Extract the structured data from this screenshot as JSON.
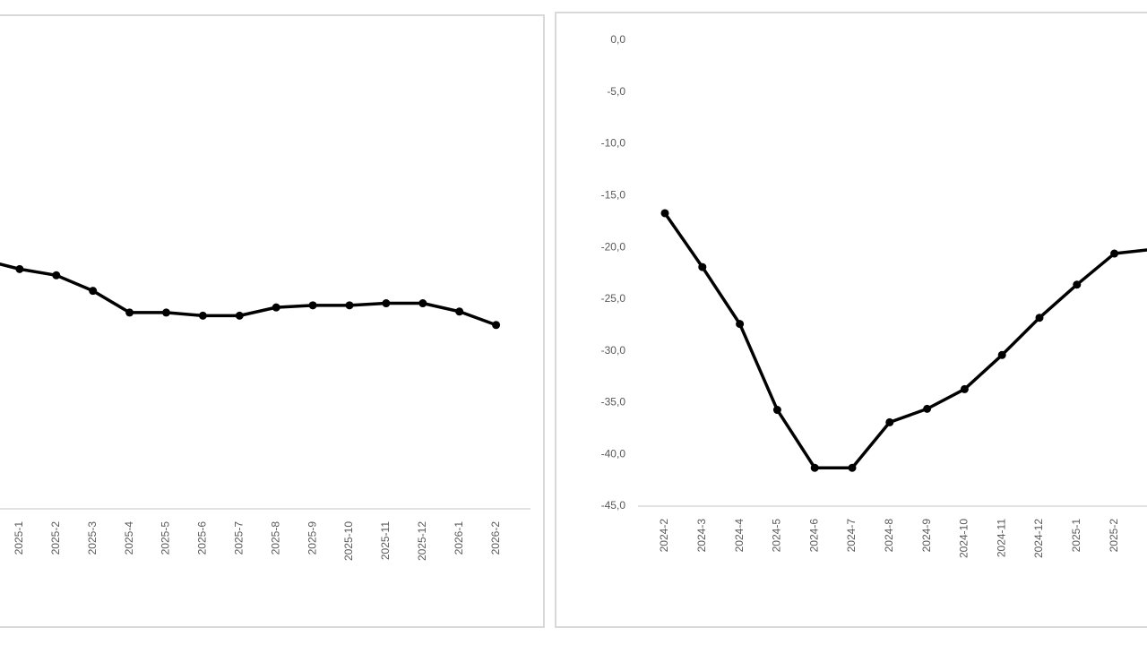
{
  "chart_data": [
    {
      "type": "line",
      "categories": [
        null,
        "2025-1",
        "2025-2",
        "2025-3",
        "2025-4",
        "2025-5",
        "2025-6",
        "2025-7",
        "2025-8",
        "2025-9",
        "2025-10",
        "2025-11",
        "2025-12",
        "2026-1",
        "2026-2"
      ],
      "values": [
        -21.2,
        -22.1,
        -22.7,
        -24.2,
        -26.3,
        -26.3,
        -26.6,
        -26.6,
        -25.8,
        -25.6,
        -25.6,
        -25.4,
        -25.4,
        -26.2,
        -27.5
      ],
      "color": "#000000",
      "ylim": [
        -45,
        0
      ]
    },
    {
      "type": "line",
      "categories": [
        "2024-2",
        "2024-3",
        "2024-4",
        "2024-5",
        "2024-6",
        "2024-7",
        "2024-8",
        "2024-9",
        "2024-10",
        "2024-11",
        "2024-12",
        "2025-1",
        "2025-2",
        null
      ],
      "values": [
        -16.7,
        -21.9,
        -27.4,
        -35.7,
        -41.3,
        -41.3,
        -36.9,
        -35.6,
        -33.7,
        -30.4,
        -26.8,
        -23.6,
        -20.6,
        -20.2
      ],
      "color": "#000000",
      "ylim": [
        -45,
        0
      ],
      "yticks": [
        {
          "value": 0,
          "label": "0,0"
        },
        {
          "value": -5,
          "label": "-5,0"
        },
        {
          "value": -10,
          "label": "-10,0"
        },
        {
          "value": -15,
          "label": "-15,0"
        },
        {
          "value": -20,
          "label": "-20,0"
        },
        {
          "value": -25,
          "label": "-25,0"
        },
        {
          "value": -30,
          "label": "-30,0"
        },
        {
          "value": -35,
          "label": "-35,0"
        },
        {
          "value": -40,
          "label": "-40,0"
        },
        {
          "value": -45,
          "label": "-45,0"
        }
      ]
    }
  ]
}
